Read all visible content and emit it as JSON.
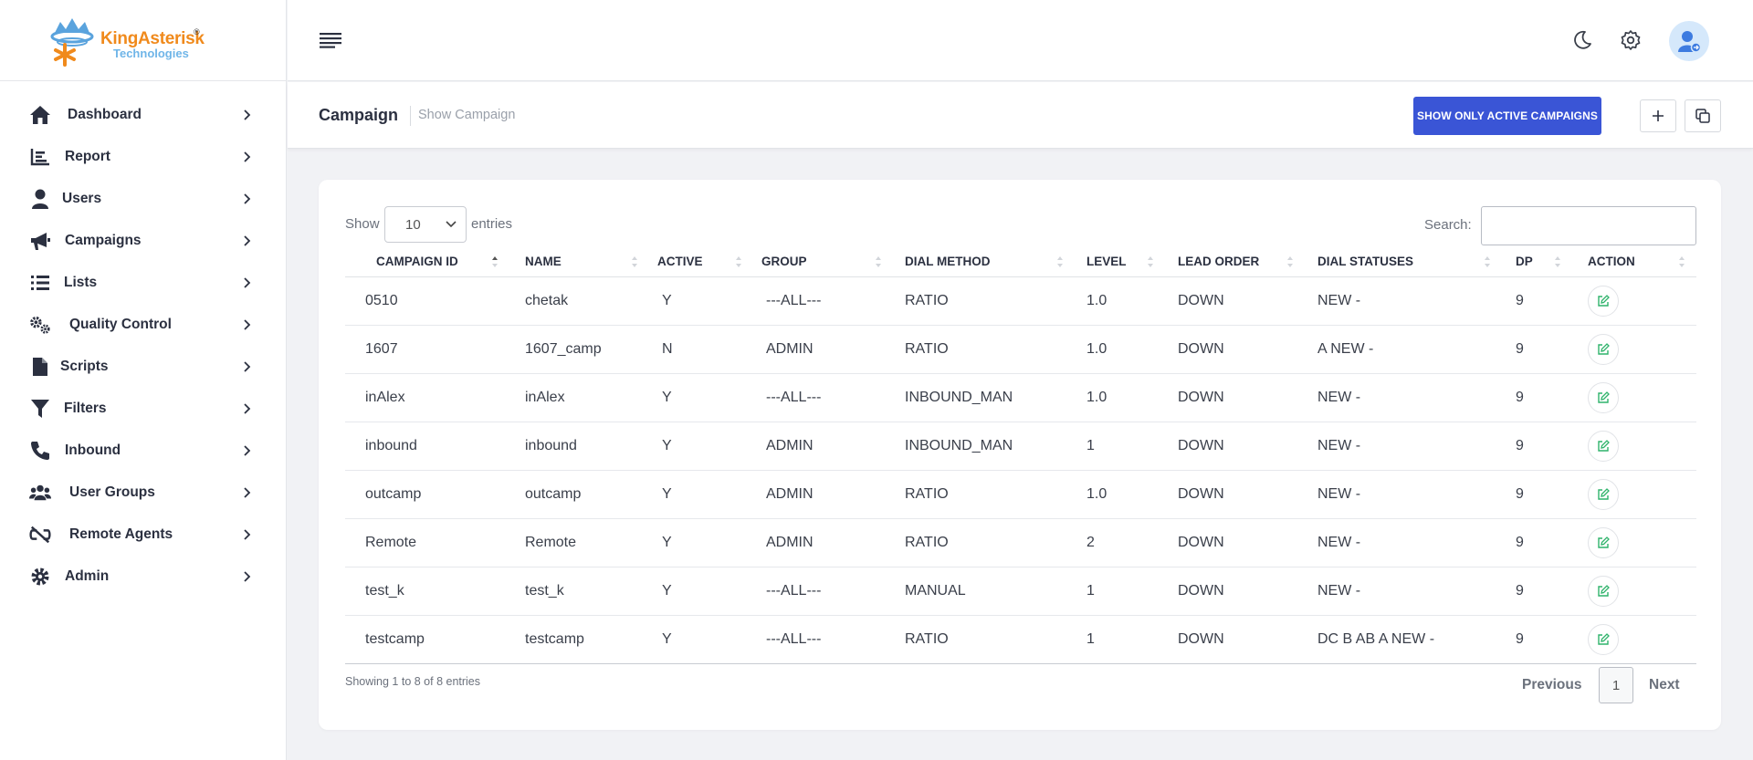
{
  "brand": {
    "name": "KingAsterisk",
    "sub": "Technologies",
    "reg": "®"
  },
  "sidebar": {
    "items": [
      {
        "label": "Dashboard",
        "icon": "home-icon"
      },
      {
        "label": "Report",
        "icon": "chart-icon"
      },
      {
        "label": "Users",
        "icon": "user-icon"
      },
      {
        "label": "Campaigns",
        "icon": "megaphone-icon"
      },
      {
        "label": "Lists",
        "icon": "list-icon"
      },
      {
        "label": "Quality Control",
        "icon": "gears-icon"
      },
      {
        "label": "Scripts",
        "icon": "file-icon"
      },
      {
        "label": "Filters",
        "icon": "filter-icon"
      },
      {
        "label": "Inbound",
        "icon": "phone-icon"
      },
      {
        "label": "User Groups",
        "icon": "users-icon"
      },
      {
        "label": "Remote Agents",
        "icon": "link-slash-icon"
      },
      {
        "label": "Admin",
        "icon": "gear-icon"
      }
    ]
  },
  "header": {
    "title": "Campaign",
    "breadcrumb": "Show Campaign",
    "active_button": "SHOW ONLY ACTIVE CAMPAIGNS",
    "accent": "#3a55d6"
  },
  "table_controls": {
    "show_label": "Show",
    "page_size": "10",
    "entries_label": "entries",
    "search_label": "Search:",
    "search_value": ""
  },
  "table": {
    "columns": [
      "CAMPAIGN ID",
      "NAME",
      "ACTIVE",
      "GROUP",
      "DIAL METHOD",
      "LEVEL",
      "LEAD ORDER",
      "DIAL STATUSES",
      "DP",
      "ACTION"
    ],
    "rows": [
      [
        "0510",
        "chetak",
        "Y",
        "---ALL---",
        "RATIO",
        "1.0",
        "DOWN",
        "NEW -",
        "9"
      ],
      [
        "1607",
        "1607_camp",
        "N",
        "ADMIN",
        "RATIO",
        "1.0",
        "DOWN",
        "A NEW -",
        "9"
      ],
      [
        "inAlex",
        "inAlex",
        "Y",
        "---ALL---",
        "INBOUND_MAN",
        "1.0",
        "DOWN",
        "NEW -",
        "9"
      ],
      [
        "inbound",
        "inbound",
        "Y",
        "ADMIN",
        "INBOUND_MAN",
        "1",
        "DOWN",
        "NEW -",
        "9"
      ],
      [
        "outcamp",
        "outcamp",
        "Y",
        "ADMIN",
        "RATIO",
        "1.0",
        "DOWN",
        "NEW -",
        "9"
      ],
      [
        "Remote",
        "Remote",
        "Y",
        "ADMIN",
        "RATIO",
        "2",
        "DOWN",
        "NEW -",
        "9"
      ],
      [
        "test_k",
        "test_k",
        "Y",
        "---ALL---",
        "MANUAL",
        "1",
        "DOWN",
        "NEW -",
        "9"
      ],
      [
        "testcamp",
        "testcamp",
        "Y",
        "---ALL---",
        "RATIO",
        "1",
        "DOWN",
        "DC B AB A NEW -",
        "9"
      ]
    ]
  },
  "footer": {
    "info": "Showing 1 to 8 of 8 entries",
    "prev": "Previous",
    "page": "1",
    "next": "Next"
  }
}
